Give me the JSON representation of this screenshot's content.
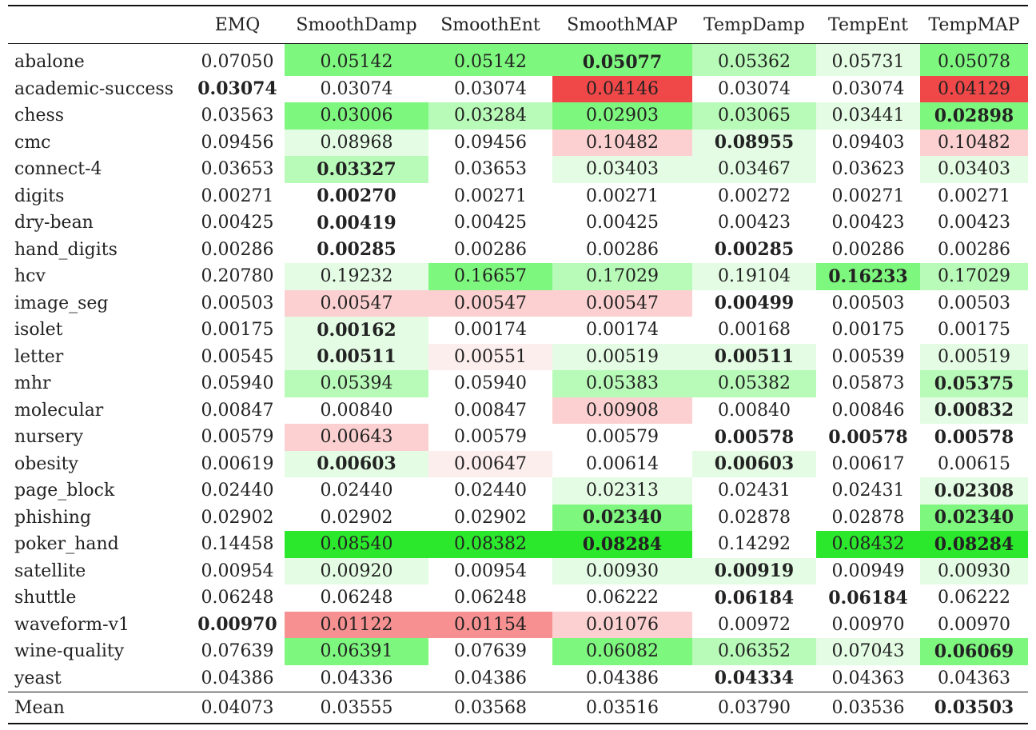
{
  "table": {
    "columns": [
      "",
      "EMQ",
      "SmoothDamp",
      "SmoothEnt",
      "SmoothMAP",
      "TempDamp",
      "TempEnt",
      "TempMAP"
    ],
    "colors": {
      "green_strong": "#2ce82c",
      "green_medium": "#7ef77e",
      "green_light": "#b8fab8",
      "green_faint": "#e4fce4",
      "red_strong": "#f04848",
      "red_medium": "#f79090",
      "red_light": "#fcd0d0",
      "red_faint": "#fdeeee"
    },
    "rows": [
      {
        "name": "abalone",
        "values": [
          "0.07050",
          "0.05142",
          "0.05142",
          "0.05077",
          "0.05362",
          "0.05731",
          "0.05078"
        ],
        "best": [
          3
        ],
        "shade": [
          "",
          "gm",
          "gm",
          "gm",
          "gl",
          "gf",
          "gm"
        ]
      },
      {
        "name": "academic-success",
        "values": [
          "0.03074",
          "0.03074",
          "0.03074",
          "0.04146",
          "0.03074",
          "0.03074",
          "0.04129"
        ],
        "best": [
          0
        ],
        "shade": [
          "",
          "",
          "",
          "rs",
          "",
          "",
          "rs"
        ]
      },
      {
        "name": "chess",
        "values": [
          "0.03563",
          "0.03006",
          "0.03284",
          "0.02903",
          "0.03065",
          "0.03441",
          "0.02898"
        ],
        "best": [
          6
        ],
        "shade": [
          "",
          "gm",
          "gl",
          "gm",
          "gl",
          "gf",
          "gm"
        ]
      },
      {
        "name": "cmc",
        "values": [
          "0.09456",
          "0.08968",
          "0.09456",
          "0.10482",
          "0.08955",
          "0.09403",
          "0.10482"
        ],
        "best": [
          4
        ],
        "shade": [
          "",
          "gf",
          "",
          "rl",
          "gf",
          "",
          "rl"
        ]
      },
      {
        "name": "connect-4",
        "values": [
          "0.03653",
          "0.03327",
          "0.03653",
          "0.03403",
          "0.03467",
          "0.03623",
          "0.03403"
        ],
        "best": [
          1
        ],
        "shade": [
          "",
          "gl",
          "",
          "gf",
          "gf",
          "",
          "gf"
        ]
      },
      {
        "name": "digits",
        "values": [
          "0.00271",
          "0.00270",
          "0.00271",
          "0.00271",
          "0.00272",
          "0.00271",
          "0.00271"
        ],
        "best": [
          1
        ],
        "shade": [
          "",
          "",
          "",
          "",
          "",
          "",
          ""
        ]
      },
      {
        "name": "dry-bean",
        "values": [
          "0.00425",
          "0.00419",
          "0.00425",
          "0.00425",
          "0.00423",
          "0.00423",
          "0.00423"
        ],
        "best": [
          1
        ],
        "shade": [
          "",
          "",
          "",
          "",
          "",
          "",
          ""
        ]
      },
      {
        "name": "hand_digits",
        "values": [
          "0.00286",
          "0.00285",
          "0.00286",
          "0.00286",
          "0.00285",
          "0.00286",
          "0.00286"
        ],
        "best": [
          1,
          4
        ],
        "shade": [
          "",
          "",
          "",
          "",
          "",
          "",
          ""
        ]
      },
      {
        "name": "hcv",
        "values": [
          "0.20780",
          "0.19232",
          "0.16657",
          "0.17029",
          "0.19104",
          "0.16233",
          "0.17029"
        ],
        "best": [
          5
        ],
        "shade": [
          "",
          "gf",
          "gm",
          "gl",
          "gf",
          "gm",
          "gl"
        ]
      },
      {
        "name": "image_seg",
        "values": [
          "0.00503",
          "0.00547",
          "0.00547",
          "0.00547",
          "0.00499",
          "0.00503",
          "0.00503"
        ],
        "best": [
          4
        ],
        "shade": [
          "",
          "rl",
          "rl",
          "rl",
          "",
          "",
          ""
        ]
      },
      {
        "name": "isolet",
        "values": [
          "0.00175",
          "0.00162",
          "0.00174",
          "0.00174",
          "0.00168",
          "0.00175",
          "0.00175"
        ],
        "best": [
          1
        ],
        "shade": [
          "",
          "gf",
          "",
          "",
          "",
          "",
          ""
        ]
      },
      {
        "name": "letter",
        "values": [
          "0.00545",
          "0.00511",
          "0.00551",
          "0.00519",
          "0.00511",
          "0.00539",
          "0.00519"
        ],
        "best": [
          1,
          4
        ],
        "shade": [
          "",
          "gf",
          "rf",
          "gf",
          "gf",
          "",
          "gf"
        ]
      },
      {
        "name": "mhr",
        "values": [
          "0.05940",
          "0.05394",
          "0.05940",
          "0.05383",
          "0.05382",
          "0.05873",
          "0.05375"
        ],
        "best": [
          6
        ],
        "shade": [
          "",
          "gl",
          "",
          "gl",
          "gl",
          "",
          "gl"
        ]
      },
      {
        "name": "molecular",
        "values": [
          "0.00847",
          "0.00840",
          "0.00847",
          "0.00908",
          "0.00840",
          "0.00846",
          "0.00832"
        ],
        "best": [
          6
        ],
        "shade": [
          "",
          "",
          "",
          "rl",
          "",
          "",
          "gf"
        ]
      },
      {
        "name": "nursery",
        "values": [
          "0.00579",
          "0.00643",
          "0.00579",
          "0.00579",
          "0.00578",
          "0.00578",
          "0.00578"
        ],
        "best": [
          4,
          5,
          6
        ],
        "shade": [
          "",
          "rl",
          "",
          "",
          "",
          "",
          ""
        ]
      },
      {
        "name": "obesity",
        "values": [
          "0.00619",
          "0.00603",
          "0.00647",
          "0.00614",
          "0.00603",
          "0.00617",
          "0.00615"
        ],
        "best": [
          1,
          4
        ],
        "shade": [
          "",
          "gf",
          "rf",
          "",
          "gf",
          "",
          ""
        ]
      },
      {
        "name": "page_block",
        "values": [
          "0.02440",
          "0.02440",
          "0.02440",
          "0.02313",
          "0.02431",
          "0.02431",
          "0.02308"
        ],
        "best": [
          6
        ],
        "shade": [
          "",
          "",
          "",
          "gf",
          "",
          "",
          "gf"
        ]
      },
      {
        "name": "phishing",
        "values": [
          "0.02902",
          "0.02902",
          "0.02902",
          "0.02340",
          "0.02878",
          "0.02878",
          "0.02340"
        ],
        "best": [
          3,
          6
        ],
        "shade": [
          "",
          "",
          "",
          "gm",
          "",
          "",
          "gm"
        ]
      },
      {
        "name": "poker_hand",
        "values": [
          "0.14458",
          "0.08540",
          "0.08382",
          "0.08284",
          "0.14292",
          "0.08432",
          "0.08284"
        ],
        "best": [
          3,
          6
        ],
        "shade": [
          "",
          "gs",
          "gs",
          "gs",
          "",
          "gs",
          "gs"
        ]
      },
      {
        "name": "satellite",
        "values": [
          "0.00954",
          "0.00920",
          "0.00954",
          "0.00930",
          "0.00919",
          "0.00949",
          "0.00930"
        ],
        "best": [
          4
        ],
        "shade": [
          "",
          "gf",
          "",
          "gf",
          "gf",
          "",
          "gf"
        ]
      },
      {
        "name": "shuttle",
        "values": [
          "0.06248",
          "0.06248",
          "0.06248",
          "0.06222",
          "0.06184",
          "0.06184",
          "0.06222"
        ],
        "best": [
          4,
          5
        ],
        "shade": [
          "",
          "",
          "",
          "",
          "",
          "",
          ""
        ]
      },
      {
        "name": "waveform-v1",
        "values": [
          "0.00970",
          "0.01122",
          "0.01154",
          "0.01076",
          "0.00972",
          "0.00970",
          "0.00970"
        ],
        "best": [
          0
        ],
        "shade": [
          "",
          "rm",
          "rm",
          "rl",
          "",
          "",
          ""
        ]
      },
      {
        "name": "wine-quality",
        "values": [
          "0.07639",
          "0.06391",
          "0.07639",
          "0.06082",
          "0.06352",
          "0.07043",
          "0.06069"
        ],
        "best": [
          6
        ],
        "shade": [
          "",
          "gm",
          "",
          "gm",
          "gl",
          "gf",
          "gm"
        ]
      },
      {
        "name": "yeast",
        "values": [
          "0.04386",
          "0.04336",
          "0.04386",
          "0.04386",
          "0.04334",
          "0.04363",
          "0.04363"
        ],
        "best": [
          4
        ],
        "shade": [
          "",
          "",
          "",
          "",
          "",
          "",
          ""
        ]
      }
    ],
    "mean": {
      "name": "Mean",
      "values": [
        "0.04073",
        "0.03555",
        "0.03568",
        "0.03516",
        "0.03790",
        "0.03536",
        "0.03503"
      ],
      "best": [
        6
      ]
    }
  }
}
